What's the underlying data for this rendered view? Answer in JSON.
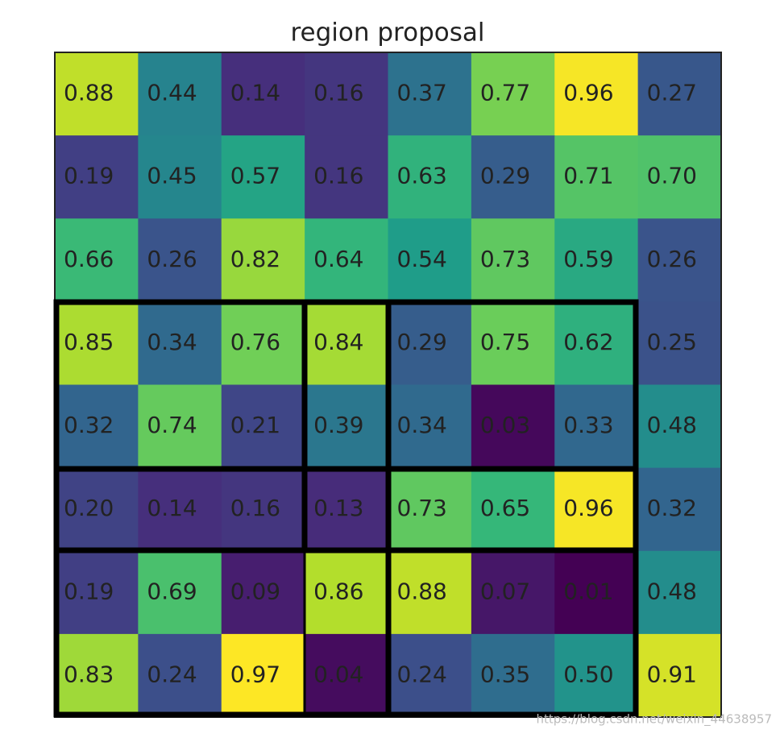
{
  "chart_data": {
    "type": "heatmap",
    "title": "region proposal",
    "colormap": "viridis",
    "values": [
      [
        0.88,
        0.44,
        0.14,
        0.16,
        0.37,
        0.77,
        0.96,
        0.27
      ],
      [
        0.19,
        0.45,
        0.57,
        0.16,
        0.63,
        0.29,
        0.71,
        0.7
      ],
      [
        0.66,
        0.26,
        0.82,
        0.64,
        0.54,
        0.73,
        0.59,
        0.26
      ],
      [
        0.85,
        0.34,
        0.76,
        0.84,
        0.29,
        0.75,
        0.62,
        0.25
      ],
      [
        0.32,
        0.74,
        0.21,
        0.39,
        0.34,
        0.03,
        0.33,
        0.48
      ],
      [
        0.2,
        0.14,
        0.16,
        0.13,
        0.73,
        0.65,
        0.96,
        0.32
      ],
      [
        0.19,
        0.69,
        0.09,
        0.86,
        0.88,
        0.07,
        0.01,
        0.48
      ],
      [
        0.83,
        0.24,
        0.97,
        0.04,
        0.24,
        0.35,
        0.5,
        0.91
      ]
    ],
    "value_labels": [
      [
        "0.88",
        "0.44",
        "0.14",
        "0.16",
        "0.37",
        "0.77",
        "0.96",
        "0.27"
      ],
      [
        "0.19",
        "0.45",
        "0.57",
        "0.16",
        "0.63",
        "0.29",
        "0.71",
        "0.70"
      ],
      [
        "0.66",
        "0.26",
        "0.82",
        "0.64",
        "0.54",
        "0.73",
        "0.59",
        "0.26"
      ],
      [
        "0.85",
        "0.34",
        "0.76",
        "0.84",
        "0.29",
        "0.75",
        "0.62",
        "0.25"
      ],
      [
        "0.32",
        "0.74",
        "0.21",
        "0.39",
        "0.34",
        "0.03",
        "0.33",
        "0.48"
      ],
      [
        "0.20",
        "0.14",
        "0.16",
        "0.13",
        "0.73",
        "0.65",
        "0.96",
        "0.32"
      ],
      [
        "0.19",
        "0.69",
        "0.09",
        "0.86",
        "0.88",
        "0.07",
        "0.01",
        "0.48"
      ],
      [
        "0.83",
        "0.24",
        "0.97",
        "0.04",
        "0.24",
        "0.35",
        "0.50",
        "0.91"
      ]
    ],
    "watermark": "https://blog.csdn.net/weixin_44638957"
  }
}
